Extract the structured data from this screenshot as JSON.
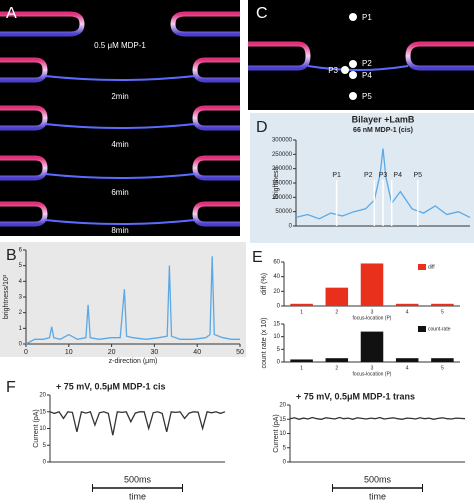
{
  "panel_labels": [
    "A",
    "B",
    "C",
    "D",
    "E",
    "F"
  ],
  "image_a_labels": [
    "0.5 μM MDP-1",
    "2min",
    "4min",
    "6min",
    "8min"
  ],
  "image_c_labels": [
    "P1",
    "P2",
    "P3",
    "P4",
    "P5"
  ],
  "chart_data": [
    {
      "type": "line",
      "ylabel": "brightness/10³",
      "xlabel": "z-direction (μm)",
      "color": "#5aa9e6",
      "x": [
        0,
        2,
        4,
        5.5,
        6,
        6.5,
        8,
        10,
        12,
        14,
        14.5,
        15,
        17,
        20,
        22,
        23,
        23.5,
        25,
        28,
        31,
        33,
        33.5,
        34,
        36,
        39,
        42,
        43,
        43.5,
        44,
        46,
        48,
        50
      ],
      "values": [
        0,
        0.3,
        0.3,
        0.4,
        1.1,
        0.4,
        0.3,
        0.6,
        0.3,
        0.4,
        2.5,
        0.4,
        0.3,
        0.4,
        0.4,
        3.5,
        0.5,
        0.4,
        0.3,
        0.4,
        0.5,
        5,
        0.5,
        0.3,
        0.3,
        0.4,
        0.6,
        5.6,
        0.6,
        0.4,
        0.3,
        0.3
      ],
      "xlim": [
        0,
        50
      ],
      "ylim": [
        0,
        6
      ],
      "xticks": [
        0,
        10,
        20,
        30,
        40,
        50
      ],
      "yticks": [
        0,
        1,
        2,
        3,
        4,
        5,
        6
      ]
    },
    {
      "type": "line",
      "title": "Bilayer +LamB",
      "subtitle": "66 nM MDP-1 (cis)",
      "ylabel": "brightness",
      "color": "#5aa9e6",
      "x": [
        0,
        4,
        8,
        12,
        16,
        20,
        24,
        27,
        29,
        30,
        31,
        33,
        36,
        40,
        44,
        48,
        52,
        56,
        60
      ],
      "values": [
        30000,
        40000,
        25000,
        45000,
        35000,
        50000,
        60000,
        90000,
        180000,
        270000,
        170000,
        80000,
        120000,
        60000,
        45000,
        70000,
        40000,
        50000,
        30000
      ],
      "xlim": [
        0,
        60
      ],
      "ylim": [
        0,
        300000
      ],
      "yticks": [
        0,
        50000,
        100000,
        150000,
        200000,
        250000,
        300000
      ],
      "markers": [
        {
          "label": "P1",
          "x": 14
        },
        {
          "label": "P2",
          "x": 27
        },
        {
          "label": "P3",
          "x": 30
        },
        {
          "label": "P4",
          "x": 33
        },
        {
          "label": "P5",
          "x": 42
        }
      ]
    },
    {
      "type": "bar",
      "ylabel": "diff (%)",
      "xlabel": "focus-location (P)",
      "categories": [
        "1",
        "2",
        "3",
        "4",
        "5"
      ],
      "series": [
        {
          "name": "diff",
          "color": "#e8301c",
          "values": [
            3,
            25,
            58,
            3,
            3
          ]
        }
      ],
      "ylim": [
        0,
        60
      ],
      "yticks": [
        0,
        20,
        40,
        60
      ]
    },
    {
      "type": "bar",
      "ylabel": "count rate (x 10)",
      "xlabel": "focus-location (P)",
      "categories": [
        "1",
        "2",
        "3",
        "4",
        "5"
      ],
      "series": [
        {
          "name": "count-rate",
          "color": "#111111",
          "values": [
            1,
            1.5,
            12,
            1.5,
            1.5
          ]
        }
      ],
      "ylim": [
        0,
        15
      ],
      "yticks": [
        0,
        5,
        10,
        15
      ]
    },
    {
      "type": "trace",
      "title": "+ 75 mV, 0.5μM MDP-1 cis",
      "ylabel": "Current (pA)",
      "scale_bar": "500ms",
      "xlabel": "time",
      "color": "#333333",
      "values": [
        15,
        14.5,
        15,
        13,
        15,
        14.8,
        9,
        15,
        14.6,
        15,
        11,
        14.7,
        15,
        14.5,
        8,
        15,
        14.8,
        15,
        12,
        14.6,
        15,
        15,
        10,
        14.7,
        15,
        14.5,
        9,
        15,
        14.8,
        15,
        13,
        14.6,
        15,
        14.9,
        10,
        15,
        14.7,
        15,
        14.5,
        15
      ],
      "ylim": [
        0,
        20
      ],
      "yticks": [
        0,
        5,
        10,
        15,
        20
      ]
    },
    {
      "type": "trace",
      "title": "+ 75 mV, 0.5μM MDP-1 trans",
      "ylabel": "Current (pA)",
      "scale_bar": "500ms",
      "xlabel": "time",
      "color": "#333333",
      "values": [
        15.2,
        15.5,
        15,
        15.4,
        15.1,
        15.6,
        15.2,
        15,
        15.5,
        15.3,
        15.1,
        15.6,
        15.2,
        15.4,
        15,
        15.5,
        15.3,
        15.1,
        15.4,
        15.2,
        15.6,
        15.1,
        15.3,
        15.5,
        15.2,
        15,
        15.4,
        15.3,
        15.1,
        15.5,
        15.2,
        15.4,
        15,
        15.3,
        15.5,
        15.2,
        15.1,
        15.4,
        15.3,
        15.2
      ],
      "ylim": [
        0,
        20
      ],
      "yticks": [
        0,
        5,
        10,
        15,
        20
      ]
    }
  ]
}
